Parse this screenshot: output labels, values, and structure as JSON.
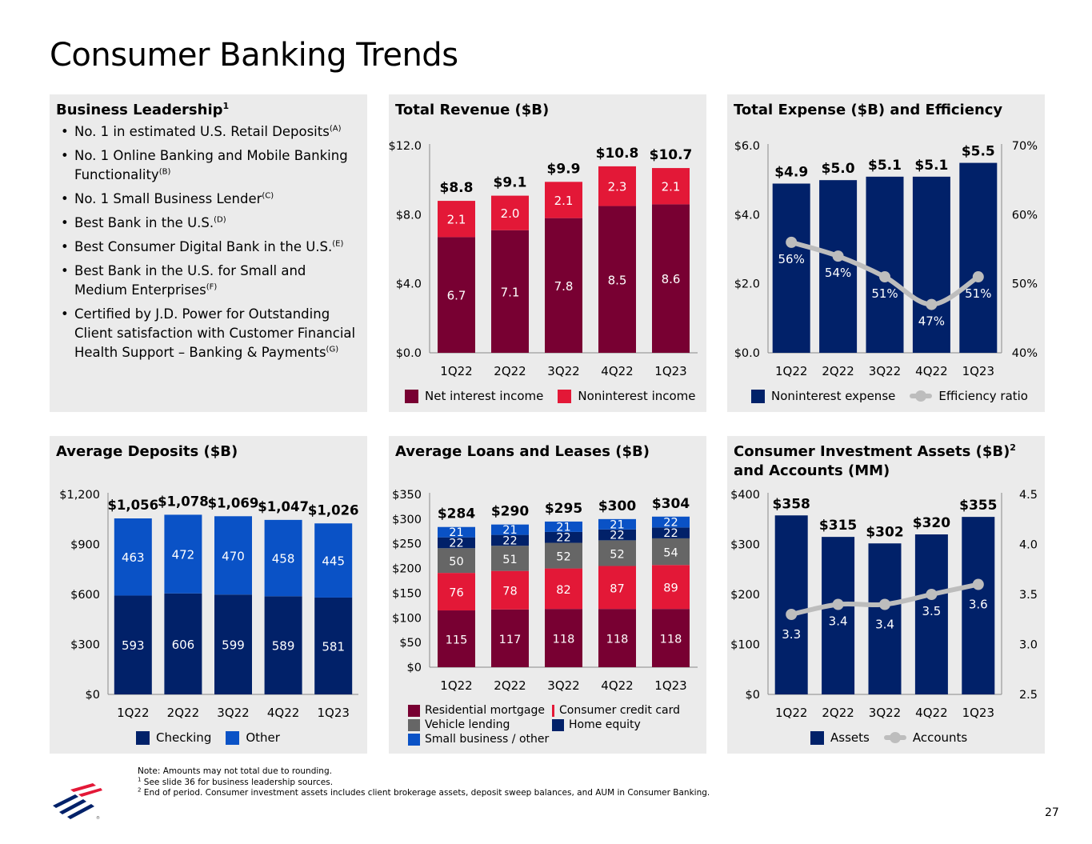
{
  "page": {
    "title": "Consumer Banking Trends",
    "page_number": "27",
    "notes": [
      {
        "marker": "",
        "text": "Note: Amounts may not total due to rounding."
      },
      {
        "marker": "1",
        "text": " See slide 36 for business leadership sources."
      },
      {
        "marker": "2",
        "text": " End of period. Consumer investment assets includes client brokerage assets, deposit sweep balances, and AUM in Consumer Banking."
      }
    ]
  },
  "leadership": {
    "title": "Business Leadership",
    "title_sup": "1",
    "items": [
      {
        "text": "No. 1 in estimated U.S. Retail Deposits",
        "sup": "(A)"
      },
      {
        "text": "No. 1 Online Banking and Mobile Banking Functionality",
        "sup": "(B)"
      },
      {
        "text": "No. 1 Small Business Lender",
        "sup": "(C)"
      },
      {
        "text": "Best Bank in the U.S.",
        "sup": "(D)"
      },
      {
        "text": "Best Consumer Digital Bank in the U.S.",
        "sup": "(E)"
      },
      {
        "text": "Best Bank in the U.S. for Small and Medium Enterprises",
        "sup": "(F)"
      },
      {
        "text": "Certified by J.D. Power for Outstanding Client satisfaction with Customer Financial Health Support – Banking & Payments",
        "sup": "(G)"
      }
    ]
  },
  "colors": {
    "maroon": "#780032",
    "red": "#e31837",
    "navy": "#012169",
    "blue": "#0a52c6",
    "gray": "#666666",
    "line_gray": "#bdbdbd",
    "panel_bg": "#ebebeb"
  },
  "chart_data": [
    {
      "id": "revenue",
      "type": "bar",
      "stacked": true,
      "title": "Total Revenue ($B)",
      "categories": [
        "1Q22",
        "2Q22",
        "3Q22",
        "4Q22",
        "1Q23"
      ],
      "series": [
        {
          "name": "Net interest income",
          "values": [
            6.7,
            7.1,
            7.8,
            8.5,
            8.6
          ],
          "labels": [
            "6.7",
            "7.1",
            "7.8",
            "8.5",
            "8.6"
          ],
          "color": "#780032"
        },
        {
          "name": "Noninterest income",
          "values": [
            2.1,
            2.0,
            2.1,
            2.3,
            2.1
          ],
          "labels": [
            "2.1",
            "2.0",
            "2.1",
            "2.3",
            "2.1"
          ],
          "color": "#e31837"
        }
      ],
      "totals": [
        "$8.8",
        "$9.1",
        "$9.9",
        "$10.8",
        "$10.7"
      ],
      "ylim": [
        0,
        12
      ],
      "yticks": [
        "$0.0",
        "$4.0",
        "$8.0",
        "$12.0"
      ]
    },
    {
      "id": "expense",
      "type": "bar",
      "title": "Total Expense ($B) and Efficiency",
      "categories": [
        "1Q22",
        "2Q22",
        "3Q22",
        "4Q22",
        "1Q23"
      ],
      "series": [
        {
          "name": "Noninterest expense",
          "values": [
            4.9,
            5.0,
            5.1,
            5.1,
            5.5
          ],
          "labels": [
            "$4.9",
            "$5.0",
            "$5.1",
            "$5.1",
            "$5.5"
          ],
          "color": "#012169"
        },
        {
          "name": "Efficiency ratio",
          "type": "line",
          "axis": "right",
          "values": [
            56,
            54,
            51,
            47,
            51
          ],
          "labels": [
            "56%",
            "54%",
            "51%",
            "47%",
            "51%"
          ],
          "color": "#bdbdbd"
        }
      ],
      "ylim": [
        0,
        6
      ],
      "yticks": [
        "$0.0",
        "$2.0",
        "$4.0",
        "$6.0"
      ],
      "y2lim": [
        40,
        70
      ],
      "y2ticks": [
        "40%",
        "50%",
        "60%",
        "70%"
      ]
    },
    {
      "id": "deposits",
      "type": "bar",
      "stacked": true,
      "title": "Average Deposits ($B)",
      "categories": [
        "1Q22",
        "2Q22",
        "3Q22",
        "4Q22",
        "1Q23"
      ],
      "series": [
        {
          "name": "Checking",
          "values": [
            593,
            606,
            599,
            589,
            581
          ],
          "labels": [
            "593",
            "606",
            "599",
            "589",
            "581"
          ],
          "color": "#012169"
        },
        {
          "name": "Other",
          "values": [
            463,
            472,
            470,
            458,
            445
          ],
          "labels": [
            "463",
            "472",
            "470",
            "458",
            "445"
          ],
          "color": "#0a52c6"
        }
      ],
      "totals": [
        "$1,056",
        "$1,078",
        "$1,069",
        "$1,047",
        "$1,026"
      ],
      "ylim": [
        0,
        1200
      ],
      "yticks": [
        "$0",
        "$300",
        "$600",
        "$900",
        "$1,200"
      ]
    },
    {
      "id": "loans",
      "type": "bar",
      "stacked": true,
      "title": "Average Loans and Leases ($B)",
      "categories": [
        "1Q22",
        "2Q22",
        "3Q22",
        "4Q22",
        "1Q23"
      ],
      "series": [
        {
          "name": "Residential mortgage",
          "values": [
            115,
            117,
            118,
            118,
            118
          ],
          "labels": [
            "115",
            "117",
            "118",
            "118",
            "118"
          ],
          "color": "#780032"
        },
        {
          "name": "Consumer credit card",
          "values": [
            76,
            78,
            82,
            87,
            89
          ],
          "labels": [
            "76",
            "78",
            "82",
            "87",
            "89"
          ],
          "color": "#e31837"
        },
        {
          "name": "Vehicle lending",
          "values": [
            50,
            51,
            52,
            52,
            54
          ],
          "labels": [
            "50",
            "51",
            "52",
            "52",
            "54"
          ],
          "color": "#666666"
        },
        {
          "name": "Home equity",
          "values": [
            22,
            22,
            22,
            22,
            22
          ],
          "labels": [
            "22",
            "22",
            "22",
            "22",
            "22"
          ],
          "color": "#012169"
        },
        {
          "name": "Small business / other",
          "values": [
            21,
            21,
            21,
            21,
            22
          ],
          "labels": [
            "21",
            "21",
            "21",
            "21",
            "22"
          ],
          "color": "#0a52c6"
        }
      ],
      "totals": [
        "$284",
        "$290",
        "$295",
        "$300",
        "$304"
      ],
      "ylim": [
        0,
        350
      ],
      "yticks": [
        "$0",
        "$50",
        "$100",
        "$150",
        "$200",
        "$250",
        "$300",
        "$350"
      ]
    },
    {
      "id": "invest",
      "type": "bar",
      "title": "Consumer Investment Assets ($B)",
      "title_sup": "2",
      "title_rest": " and Accounts (MM)",
      "categories": [
        "1Q22",
        "2Q22",
        "3Q22",
        "4Q22",
        "1Q23"
      ],
      "series": [
        {
          "name": "Assets",
          "values": [
            358,
            315,
            302,
            320,
            355
          ],
          "labels": [
            "$358",
            "$315",
            "$302",
            "$320",
            "$355"
          ],
          "color": "#012169"
        },
        {
          "name": "Accounts",
          "type": "line",
          "axis": "right",
          "values": [
            3.3,
            3.4,
            3.4,
            3.5,
            3.6
          ],
          "labels": [
            "3.3",
            "3.4",
            "3.4",
            "3.5",
            "3.6"
          ],
          "color": "#bdbdbd"
        }
      ],
      "ylim": [
        0,
        400
      ],
      "yticks": [
        "$0",
        "$100",
        "$200",
        "$300",
        "$400"
      ],
      "y2lim": [
        2.5,
        4.5
      ],
      "y2ticks": [
        "2.5",
        "3.0",
        "3.5",
        "4.0",
        "4.5"
      ]
    }
  ]
}
